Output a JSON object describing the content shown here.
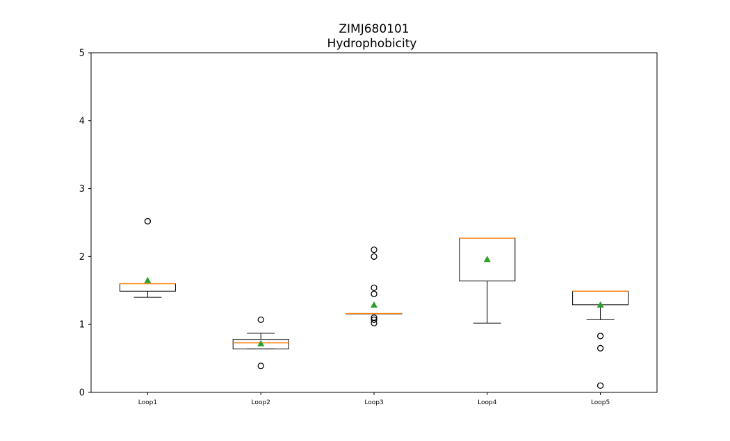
{
  "chart_data": {
    "type": "boxplot",
    "title": "ZIMJ680101",
    "subtitle": "Hydrophobicity",
    "xlabel": "",
    "ylabel": "",
    "ylim": [
      0,
      5
    ],
    "yticks": [
      0,
      1,
      2,
      3,
      4,
      5
    ],
    "grid": false,
    "categories": [
      "Loop1",
      "Loop2",
      "Loop3",
      "Loop4",
      "Loop5"
    ],
    "boxes": [
      {
        "label": "Loop1",
        "whisker_low": 1.4,
        "q1": 1.49,
        "median": 1.6,
        "q3": 1.6,
        "whisker_high": 1.6,
        "mean": 1.65,
        "outliers": [
          2.52
        ]
      },
      {
        "label": "Loop2",
        "whisker_low": 0.64,
        "q1": 0.64,
        "median": 0.73,
        "q3": 0.78,
        "whisker_high": 0.87,
        "mean": 0.72,
        "outliers": [
          0.39,
          1.07
        ]
      },
      {
        "label": "Loop3",
        "whisker_low": 1.16,
        "q1": 1.16,
        "median": 1.16,
        "q3": 1.16,
        "whisker_high": 1.16,
        "mean": 1.29,
        "outliers": [
          1.02,
          1.07,
          1.1,
          1.45,
          1.54,
          2.0,
          2.1
        ]
      },
      {
        "label": "Loop4",
        "whisker_low": 1.02,
        "q1": 1.64,
        "median": 2.27,
        "q3": 2.27,
        "whisker_high": 2.27,
        "mean": 1.96,
        "outliers": []
      },
      {
        "label": "Loop5",
        "whisker_low": 1.07,
        "q1": 1.29,
        "median": 1.49,
        "q3": 1.49,
        "whisker_high": 1.49,
        "mean": 1.29,
        "outliers": [
          0.1,
          0.65,
          0.83
        ]
      }
    ],
    "colors": {
      "box": "#000000",
      "median": "#ff7f0e",
      "mean": "#2ca02c",
      "outlier": "#000000"
    }
  }
}
